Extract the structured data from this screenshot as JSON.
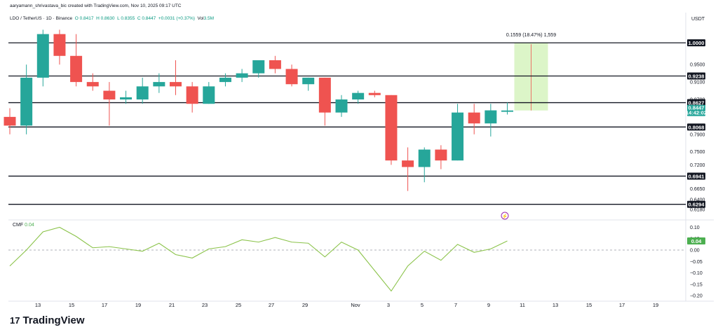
{
  "header": {
    "created_by": "aaryamann_shrivastava_bic created with TradingView.com, Nov 10, 2025 09:17 UTC"
  },
  "symbol": {
    "name": "LDO / TetherUS · 1D · Binance",
    "open": "O 0.8417",
    "high": "H 0.8630",
    "low": "L 0.8355",
    "close": "C 0.8447",
    "change": "+0.0031 (+0.37%)",
    "volume_label": "Vol",
    "volume_value": "3.5M"
  },
  "currency": "USDT",
  "price_axis_ticks": [
    "0.9500",
    "0.9100",
    "0.8700",
    "0.7900",
    "0.7500",
    "0.7200",
    "0.6650",
    "0.6400",
    "0.6180"
  ],
  "horizontal_levels": [
    "1.0000",
    "0.9238",
    "0.8627",
    "0.8068",
    "0.6941",
    "0.6294"
  ],
  "current_price": {
    "value": "0.8447",
    "countdown": "14:42:02"
  },
  "measure": {
    "label": "0.1559 (18.47%) 1,559"
  },
  "cmf": {
    "label": "CMF",
    "value": "0.04",
    "axis_ticks": [
      "0.10",
      "0.05",
      "0.00",
      "−0.05",
      "−0.10",
      "−0.15",
      "−0.20"
    ]
  },
  "x_axis_ticks": [
    "13",
    "15",
    "17",
    "19",
    "21",
    "23",
    "25",
    "27",
    "29",
    "Nov",
    "3",
    "5",
    "7",
    "9",
    "11",
    "13",
    "15",
    "17",
    "19"
  ],
  "watermark": "TradingView",
  "colors": {
    "up": "#26a69a",
    "down": "#ef5350",
    "level_line": "#131722",
    "cmf_line": "#8bc34a",
    "measure_fill": "#dcf5c8"
  },
  "chart_data": {
    "type": "candlestick",
    "xlabel": "",
    "ylabel": "",
    "candles": [
      {
        "date": "Oct 11",
        "open": 0.83,
        "high": 0.85,
        "low": 0.79,
        "close": 0.81
      },
      {
        "date": "Oct 12",
        "open": 0.81,
        "high": 0.95,
        "low": 0.79,
        "close": 0.92
      },
      {
        "date": "Oct 13",
        "open": 0.92,
        "high": 1.03,
        "low": 0.9,
        "close": 1.02
      },
      {
        "date": "Oct 14",
        "open": 1.02,
        "high": 1.03,
        "low": 0.95,
        "close": 0.97
      },
      {
        "date": "Oct 15",
        "open": 0.97,
        "high": 1.02,
        "low": 0.9,
        "close": 0.91
      },
      {
        "date": "Oct 16",
        "open": 0.91,
        "high": 0.93,
        "low": 0.89,
        "close": 0.9
      },
      {
        "date": "Oct 17",
        "open": 0.89,
        "high": 0.91,
        "low": 0.81,
        "close": 0.87
      },
      {
        "date": "Oct 18",
        "open": 0.87,
        "high": 0.89,
        "low": 0.86,
        "close": 0.875
      },
      {
        "date": "Oct 19",
        "open": 0.87,
        "high": 0.92,
        "low": 0.86,
        "close": 0.9
      },
      {
        "date": "Oct 20",
        "open": 0.9,
        "high": 0.93,
        "low": 0.885,
        "close": 0.91
      },
      {
        "date": "Oct 21",
        "open": 0.91,
        "high": 0.96,
        "low": 0.88,
        "close": 0.9
      },
      {
        "date": "Oct 22",
        "open": 0.9,
        "high": 0.91,
        "low": 0.84,
        "close": 0.86
      },
      {
        "date": "Oct 23",
        "open": 0.86,
        "high": 0.91,
        "low": 0.86,
        "close": 0.9
      },
      {
        "date": "Oct 24",
        "open": 0.91,
        "high": 0.93,
        "low": 0.9,
        "close": 0.92
      },
      {
        "date": "Oct 25",
        "open": 0.92,
        "high": 0.94,
        "low": 0.91,
        "close": 0.93
      },
      {
        "date": "Oct 26",
        "open": 0.93,
        "high": 0.96,
        "low": 0.92,
        "close": 0.96
      },
      {
        "date": "Oct 27",
        "open": 0.96,
        "high": 0.97,
        "low": 0.93,
        "close": 0.94
      },
      {
        "date": "Oct 28",
        "open": 0.94,
        "high": 0.95,
        "low": 0.9,
        "close": 0.905
      },
      {
        "date": "Oct 29",
        "open": 0.905,
        "high": 0.92,
        "low": 0.89,
        "close": 0.92
      },
      {
        "date": "Oct 30",
        "open": 0.92,
        "high": 0.92,
        "low": 0.81,
        "close": 0.84
      },
      {
        "date": "Oct 31",
        "open": 0.84,
        "high": 0.88,
        "low": 0.83,
        "close": 0.87
      },
      {
        "date": "Nov 1",
        "open": 0.87,
        "high": 0.89,
        "low": 0.86,
        "close": 0.885
      },
      {
        "date": "Nov 2",
        "open": 0.885,
        "high": 0.89,
        "low": 0.875,
        "close": 0.88
      },
      {
        "date": "Nov 3",
        "open": 0.88,
        "high": 0.88,
        "low": 0.72,
        "close": 0.73
      },
      {
        "date": "Nov 4",
        "open": 0.73,
        "high": 0.76,
        "low": 0.66,
        "close": 0.715
      },
      {
        "date": "Nov 5",
        "open": 0.715,
        "high": 0.76,
        "low": 0.68,
        "close": 0.755
      },
      {
        "date": "Nov 6",
        "open": 0.755,
        "high": 0.765,
        "low": 0.71,
        "close": 0.73
      },
      {
        "date": "Nov 7",
        "open": 0.73,
        "high": 0.86,
        "low": 0.73,
        "close": 0.84
      },
      {
        "date": "Nov 8",
        "open": 0.84,
        "high": 0.86,
        "low": 0.79,
        "close": 0.815
      },
      {
        "date": "Nov 9",
        "open": 0.815,
        "high": 0.86,
        "low": 0.785,
        "close": 0.845
      },
      {
        "date": "Nov 10",
        "open": 0.8417,
        "high": 0.863,
        "low": 0.8355,
        "close": 0.8447
      }
    ],
    "cmf_series": [
      -0.07,
      0.0,
      0.08,
      0.1,
      0.06,
      0.01,
      0.015,
      0.005,
      -0.005,
      0.03,
      -0.02,
      -0.035,
      0.005,
      0.015,
      0.045,
      0.035,
      0.055,
      0.035,
      0.03,
      -0.03,
      0.035,
      0.0,
      -0.09,
      -0.18,
      -0.07,
      -0.005,
      -0.045,
      0.025,
      -0.01,
      0.005,
      0.04
    ],
    "ylim_price": [
      0.6,
      1.05
    ],
    "ylim_cmf": [
      -0.2,
      0.12
    ]
  }
}
